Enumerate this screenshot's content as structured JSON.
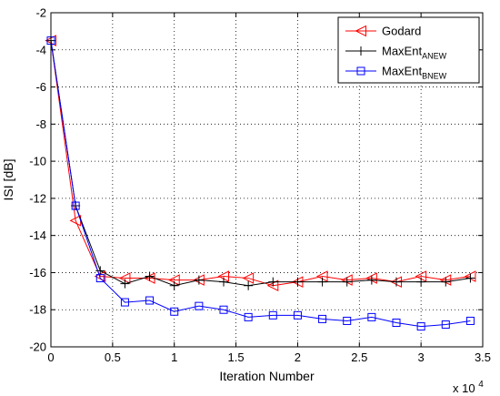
{
  "chart_data": {
    "type": "line",
    "xlabel": "Iteration Number",
    "ylabel": "ISI [dB]",
    "x_multiplier_label": "x 10",
    "x_multiplier_exp": "4",
    "xlim": [
      0,
      3.5
    ],
    "ylim": [
      -20,
      -2
    ],
    "xticks": [
      0,
      0.5,
      1,
      1.5,
      2,
      2.5,
      3,
      3.5
    ],
    "xtick_labels": [
      "0",
      "0.5",
      "1",
      "1.5",
      "2",
      "2.5",
      "3",
      "3.5"
    ],
    "yticks": [
      -20,
      -18,
      -16,
      -14,
      -12,
      -10,
      -8,
      -6,
      -4,
      -2
    ],
    "ytick_labels": [
      "-20",
      "-18",
      "-16",
      "-14",
      "-12",
      "-10",
      "-8",
      "-6",
      "-4",
      "-2"
    ],
    "grid": true,
    "legend_position": "top-right",
    "x": [
      0,
      0.2,
      0.4,
      0.6,
      0.8,
      1.0,
      1.2,
      1.4,
      1.6,
      1.8,
      2.0,
      2.2,
      2.4,
      2.6,
      2.8,
      3.0,
      3.2,
      3.4
    ],
    "series": [
      {
        "name": "Godard",
        "name_sub": "",
        "color": "#ff0000",
        "marker": "triangle-left",
        "values": [
          -3.5,
          -13.2,
          -16.2,
          -16.3,
          -16.3,
          -16.4,
          -16.4,
          -16.2,
          -16.3,
          -16.7,
          -16.5,
          -16.2,
          -16.4,
          -16.3,
          -16.5,
          -16.2,
          -16.4,
          -16.2
        ]
      },
      {
        "name": "MaxEnt",
        "name_sub": "ANEW",
        "color": "#000000",
        "marker": "plus",
        "values": [
          -3.5,
          -12.4,
          -15.9,
          -16.6,
          -16.2,
          -16.7,
          -16.4,
          -16.5,
          -16.7,
          -16.5,
          -16.5,
          -16.5,
          -16.5,
          -16.4,
          -16.5,
          -16.5,
          -16.5,
          -16.3
        ]
      },
      {
        "name": "MaxEnt",
        "name_sub": "BNEW",
        "color": "#0000ff",
        "marker": "square",
        "values": [
          -3.5,
          -12.4,
          -16.3,
          -17.6,
          -17.5,
          -18.1,
          -17.8,
          -18.0,
          -18.4,
          -18.3,
          -18.3,
          -18.5,
          -18.6,
          -18.4,
          -18.7,
          -18.9,
          -18.8,
          -18.6
        ]
      }
    ]
  }
}
